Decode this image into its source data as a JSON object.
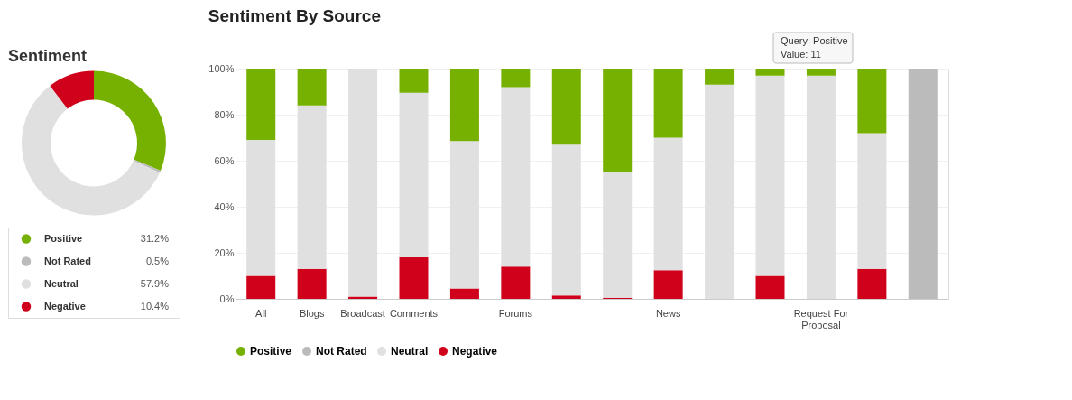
{
  "chart_data": [
    {
      "type": "donut",
      "title": "Sentiment",
      "categories": [
        "Positive",
        "Not Rated",
        "Neutral",
        "Negative"
      ],
      "values": [
        31.2,
        0.5,
        57.9,
        10.4
      ],
      "colors": [
        "#76b000",
        "#bbbbbb",
        "#e0e0e0",
        "#d0021b"
      ],
      "value_labels": [
        "31.2%",
        "0.5%",
        "57.9%",
        "10.4%"
      ],
      "legend": "bottom"
    },
    {
      "type": "bar",
      "title": "Sentiment By Source",
      "stacked": true,
      "categories": [
        "All",
        "Blogs",
        "Broadcast",
        "Comments",
        null,
        "Forums",
        null,
        null,
        "News",
        null,
        null,
        "Request For Proposal",
        null,
        null
      ],
      "series": [
        {
          "name": "Negative",
          "color": "#d0021b",
          "values": [
            10,
            13,
            1,
            18,
            4.5,
            14,
            1.5,
            0.5,
            12.5,
            0,
            10,
            0,
            13,
            0
          ]
        },
        {
          "name": "Neutral",
          "color": "#e0e0e0",
          "values": [
            59,
            71,
            99,
            71.5,
            64,
            78,
            65.5,
            54.5,
            57.5,
            93,
            87,
            97,
            59,
            0
          ]
        },
        {
          "name": "Not Rated",
          "color": "#bbbbbb",
          "values": [
            null,
            0,
            0,
            0,
            0,
            0,
            0,
            0,
            0,
            0,
            0,
            0,
            0,
            100
          ]
        },
        {
          "name": "Positive",
          "color": "#76b000",
          "values": [
            31,
            16,
            0,
            10.5,
            31.5,
            8,
            33,
            45,
            30,
            7,
            3,
            3,
            28,
            0
          ]
        }
      ],
      "ylim": [
        0,
        100
      ],
      "yticks": [
        {
          "value": 0,
          "label": "0%"
        },
        {
          "value": 20,
          "label": "20%"
        },
        {
          "value": 40,
          "label": "40%"
        },
        {
          "value": 60,
          "label": "60%"
        },
        {
          "value": 80,
          "label": "80%"
        },
        {
          "value": 100,
          "label": "100%"
        }
      ],
      "grid": "y",
      "legend": "bottom",
      "annotations": [
        "Query: Positive",
        "Value: 11"
      ]
    }
  ]
}
